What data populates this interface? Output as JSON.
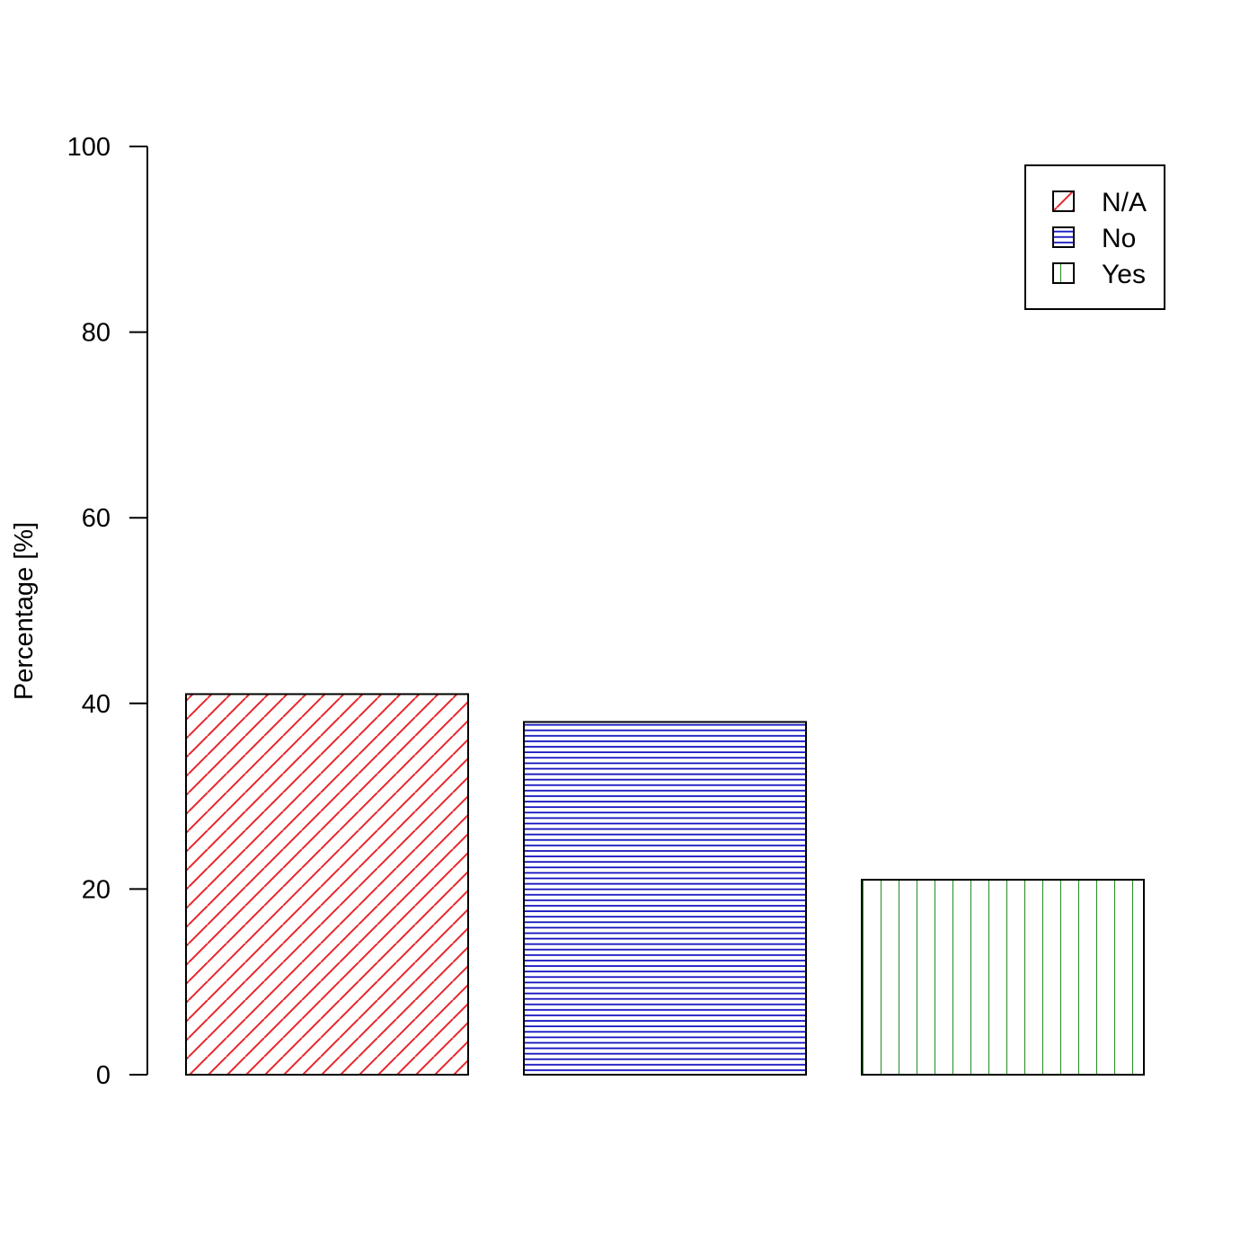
{
  "chart_data": {
    "type": "bar",
    "categories": [
      "N/A",
      "No",
      "Yes"
    ],
    "values": [
      41,
      38,
      21
    ],
    "title": "",
    "xlabel": "",
    "ylabel": "Percentage [%]",
    "ylim": [
      0,
      100
    ],
    "yticks": [
      "0",
      "20",
      "40",
      "60",
      "80",
      "100"
    ],
    "grid": false,
    "legend": {
      "placement": "top-right",
      "entries": [
        "N/A",
        "No",
        "Yes"
      ]
    },
    "colors": [
      "#e8262a",
      "#1010c0",
      "#228b22"
    ],
    "fill_patterns": [
      "diagonal-hatch",
      "horizontal-hatch",
      "vertical-hatch"
    ]
  }
}
